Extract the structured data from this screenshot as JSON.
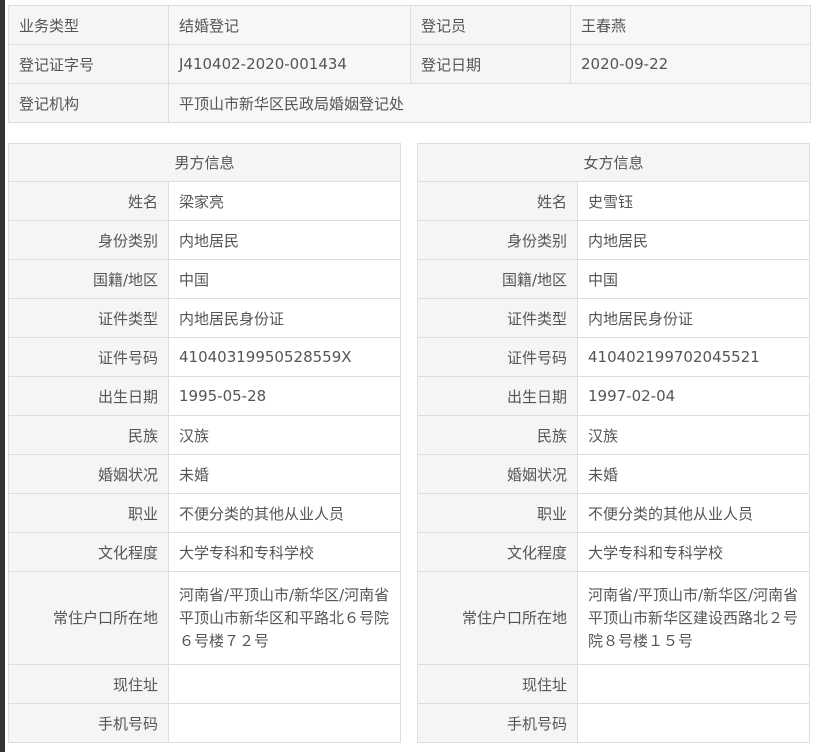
{
  "summary": {
    "business_type_label": "业务类型",
    "business_type": "结婚登记",
    "registrar_label": "登记员",
    "registrar": "王春燕",
    "cert_no_label": "登记证字号",
    "cert_no": "J410402-2020-001434",
    "reg_date_label": "登记日期",
    "reg_date": "2020-09-22",
    "office_label": "登记机构",
    "office": "平顶山市新华区民政局婚姻登记处"
  },
  "labels": [
    "姓名",
    "身份类别",
    "国籍/地区",
    "证件类型",
    "证件号码",
    "出生日期",
    "民族",
    "婚姻状况",
    "职业",
    "文化程度",
    "常住户口所在地",
    "现住址",
    "手机号码"
  ],
  "male": {
    "title": "男方信息",
    "values": [
      "梁家亮",
      "内地居民",
      "中国",
      "内地居民身份证",
      "41040319950528559X",
      "1995-05-28",
      "汉族",
      "未婚",
      "不便分类的其他从业人员",
      "大学专科和专科学校",
      "河南省/平顶山市/新华区/河南省平顶山市新华区和平路北６号院６号楼７２号",
      "",
      ""
    ]
  },
  "female": {
    "title": "女方信息",
    "values": [
      "史雪钰",
      "内地居民",
      "中国",
      "内地居民身份证",
      "410402199702045521",
      "1997-02-04",
      "汉族",
      "未婚",
      "不便分类的其他从业人员",
      "大学专科和专科学校",
      "河南省/平顶山市/新华区/河南省平顶山市新华区建设西路北２号院８号楼１５号",
      "",
      ""
    ]
  }
}
